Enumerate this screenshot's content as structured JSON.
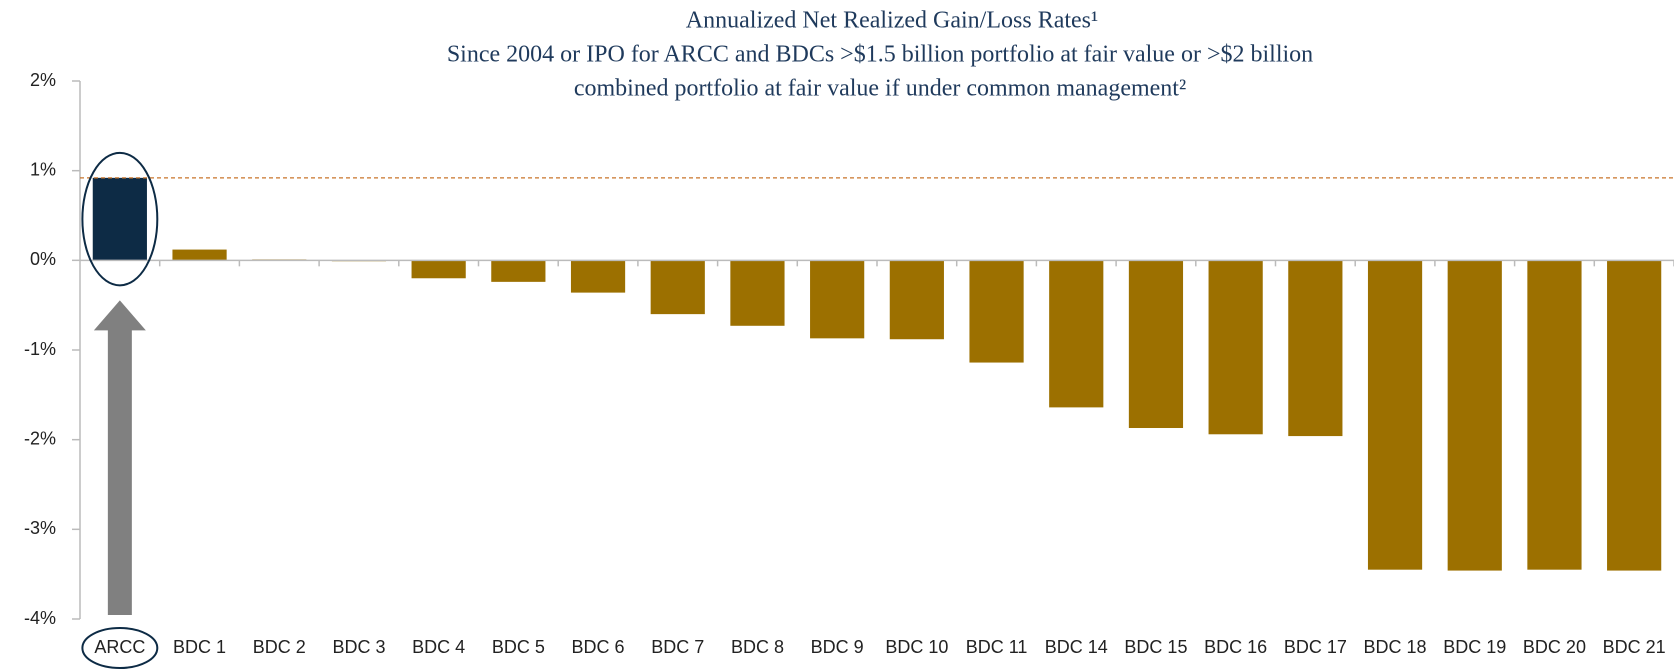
{
  "chart_data": {
    "type": "bar",
    "title": "Annualized Net Realized Gain/Loss Rates¹",
    "subtitle": [
      "Since 2004 or IPO for ARCC and BDCs >$1.5 billion portfolio at fair value or >$2 billion",
      "combined portfolio at fair value if under common management²"
    ],
    "categories": [
      "ARCC",
      "BDC 1",
      "BDC 2",
      "BDC 3",
      "BDC 4",
      "BDC 5",
      "BDC 6",
      "BDC 7",
      "BDC 8",
      "BDC 9",
      "BDC 10",
      "BDC 11",
      "BDC 14",
      "BDC 15",
      "BDC 16",
      "BDC 17",
      "BDC 18",
      "BDC 19",
      "BDC 20",
      "BDC 21"
    ],
    "values": [
      0.92,
      0.12,
      0.01,
      -0.01,
      -0.2,
      -0.24,
      -0.36,
      -0.6,
      -0.73,
      -0.87,
      -0.88,
      -1.14,
      -1.64,
      -1.87,
      -1.94,
      -1.96,
      -3.45,
      -3.46,
      -3.45,
      -3.46
    ],
    "colors": [
      "#0d2b45",
      "#9c7000",
      "#9c7000",
      "#9c7000",
      "#9c7000",
      "#9c7000",
      "#9c7000",
      "#9c7000",
      "#9c7000",
      "#9c7000",
      "#9c7000",
      "#9c7000",
      "#9c7000",
      "#9c7000",
      "#9c7000",
      "#9c7000",
      "#9c7000",
      "#9c7000",
      "#9c7000",
      "#9c7000"
    ],
    "ylim": [
      -4,
      2
    ],
    "yticks": [
      {
        "value": -4,
        "label": "-4%"
      },
      {
        "value": -3,
        "label": "-3%"
      },
      {
        "value": -2,
        "label": "-2%"
      },
      {
        "value": -1,
        "label": "-1%"
      },
      {
        "value": 0,
        "label": "0%"
      },
      {
        "value": 1,
        "label": "1%"
      },
      {
        "value": 2,
        "label": "2%"
      }
    ],
    "grid": false
  }
}
